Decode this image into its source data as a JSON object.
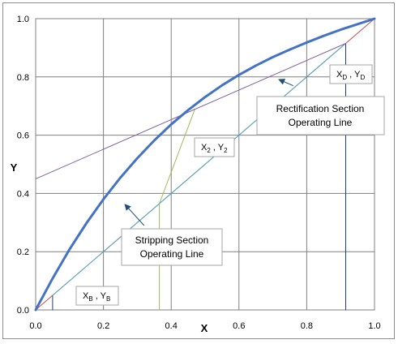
{
  "chart_data": {
    "type": "line",
    "xlabel": "X",
    "ylabel": "Y",
    "xlim": [
      0,
      1
    ],
    "ylim": [
      0,
      1
    ],
    "grid": true,
    "x_ticks": [
      "0.0",
      "0.2",
      "0.4",
      "0.6",
      "0.8",
      "1.0"
    ],
    "y_ticks": [
      "0.0",
      "0.2",
      "0.4",
      "0.6",
      "0.8",
      "1.0"
    ],
    "colors": {
      "equilibrium": "#4472c4",
      "diagonal": "#c0504d",
      "rectification": "#8064a2",
      "stripping": "#4bacc6",
      "q_line": "#9bbb59",
      "verticals": "#1f3f7a",
      "arrow": "#1f4e79",
      "grid": "#808080"
    },
    "series": [
      {
        "key": "equilibrium",
        "x": [
          0,
          0.05,
          0.1,
          0.15,
          0.2,
          0.25,
          0.3,
          0.35,
          0.4,
          0.45,
          0.5,
          0.55,
          0.6,
          0.65,
          0.7,
          0.75,
          0.8,
          0.85,
          0.9,
          0.95,
          1.0
        ],
        "y": [
          0,
          0.108,
          0.208,
          0.298,
          0.38,
          0.454,
          0.521,
          0.582,
          0.637,
          0.686,
          0.731,
          0.771,
          0.807,
          0.839,
          0.868,
          0.894,
          0.918,
          0.941,
          0.962,
          0.981,
          1.0
        ]
      },
      {
        "key": "diagonal",
        "x": [
          0,
          1
        ],
        "y": [
          0,
          1
        ]
      },
      {
        "key": "rectification",
        "x": [
          0,
          0.915
        ],
        "y": [
          0.45,
          0.915
        ]
      },
      {
        "key": "stripping",
        "x": [
          0.05,
          0.915
        ],
        "y": [
          0.05,
          0.915
        ]
      },
      {
        "key": "q_line",
        "x": [
          0.365,
          0.365,
          0.47
        ],
        "y": [
          0,
          0.365,
          0.69
        ]
      },
      {
        "key": "verticals",
        "x": [
          0.05,
          0.05
        ],
        "y": [
          0,
          0.05
        ]
      },
      {
        "key": "verticals",
        "x": [
          0.915,
          0.915
        ],
        "y": [
          0,
          0.915
        ]
      }
    ],
    "annotations": [
      {
        "key": "rectification",
        "lines": [
          "Rectification Section",
          "Operating Line"
        ],
        "arrow_from": [
          0.76,
          0.77
        ],
        "arrow_to": [
          0.72,
          0.79
        ]
      },
      {
        "key": "stripping",
        "lines": [
          "Stripping Section",
          "Operating Line"
        ],
        "arrow_from": [
          0.32,
          0.29
        ],
        "arrow_to": [
          0.265,
          0.36
        ]
      }
    ],
    "point_labels": [
      {
        "key": "xd",
        "text_main_1": "X",
        "sub_1": "D",
        "sep": " , ",
        "text_main_2": "Y",
        "sub_2": "D"
      },
      {
        "key": "x2",
        "text_main_1": "X",
        "sub_1": "2",
        "sep": " , ",
        "text_main_2": "Y",
        "sub_2": "2"
      },
      {
        "key": "xb",
        "text_main_1": "X",
        "sub_1": "B",
        "sep": " , ",
        "text_main_2": "Y",
        "sub_2": "B"
      }
    ]
  }
}
